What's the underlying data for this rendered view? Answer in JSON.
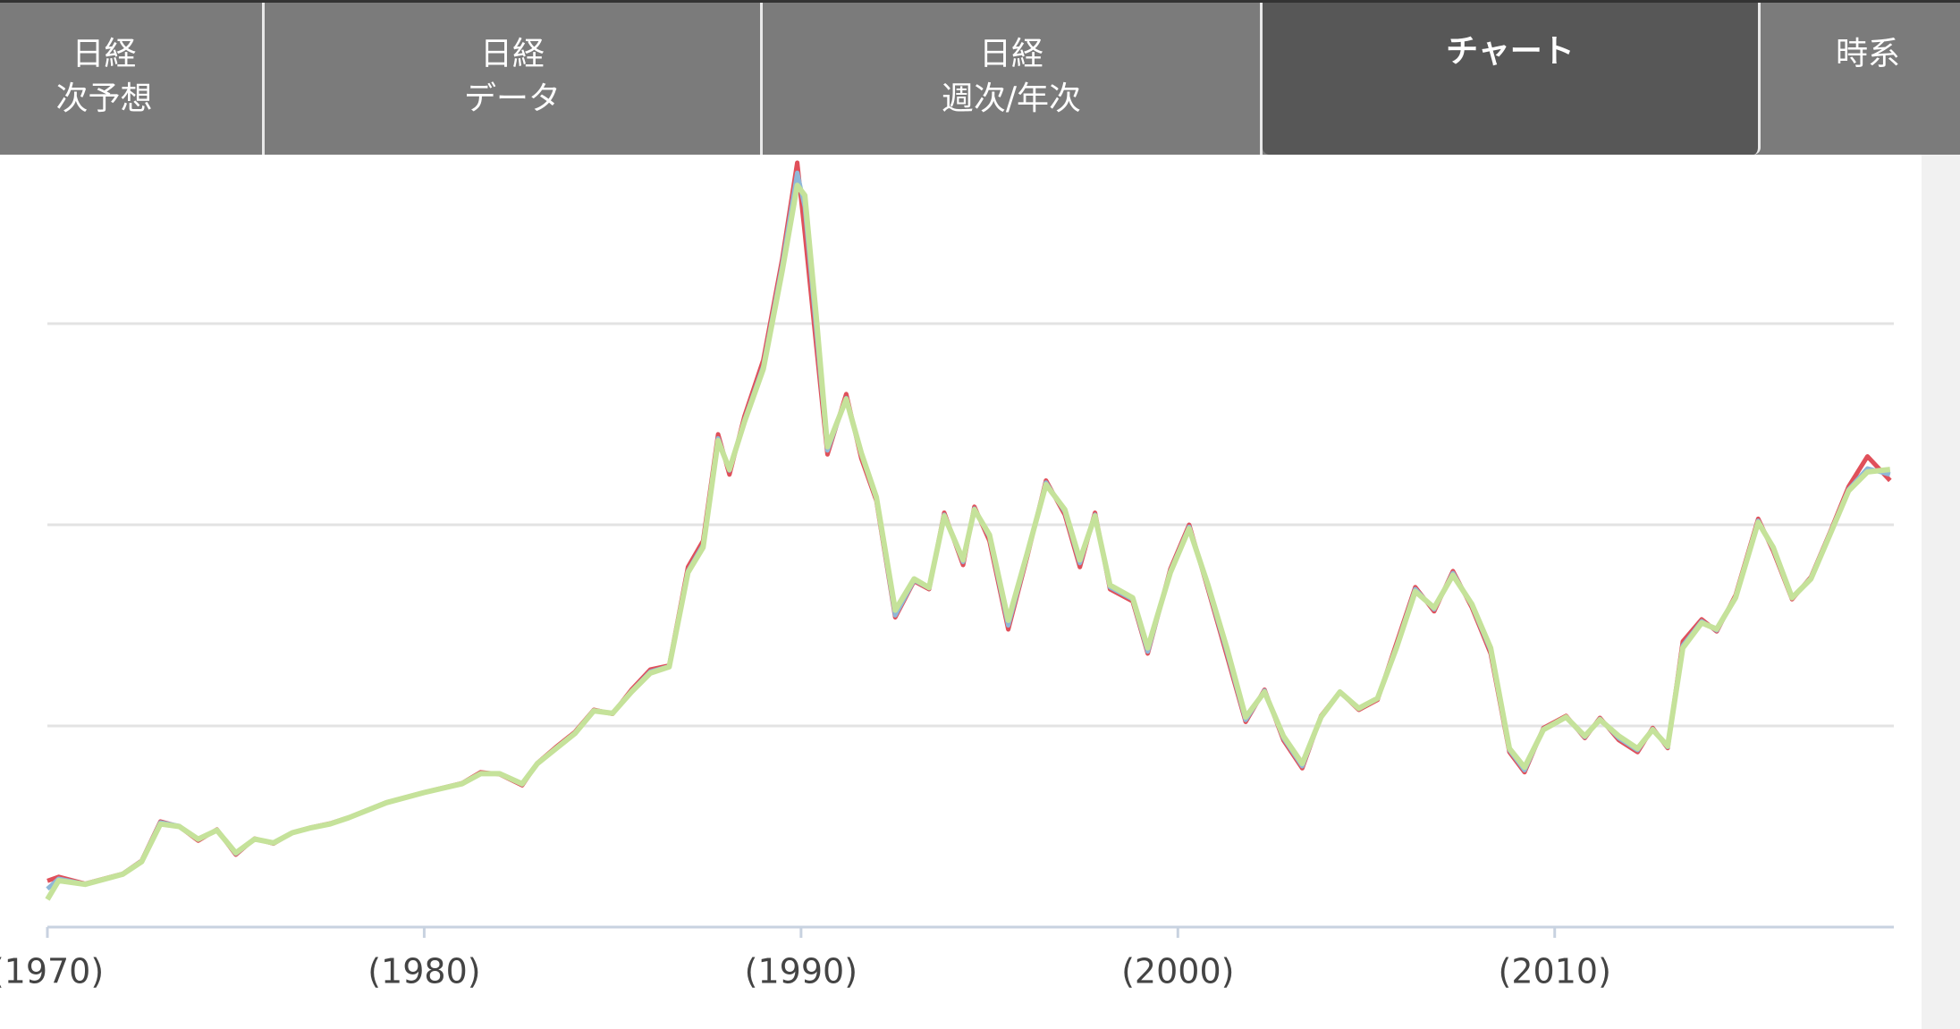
{
  "tabs": [
    {
      "line1": "日経",
      "line2": "次予想"
    },
    {
      "line1": "日経",
      "line2": "データ"
    },
    {
      "line1": "日経",
      "line2": "週次/年次"
    },
    {
      "line1": "チャート",
      "active": true
    },
    {
      "line1": "時系"
    }
  ],
  "chart_data": {
    "type": "line",
    "x": [
      1970.0,
      1970.3,
      1971.0,
      1972.0,
      1972.5,
      1973.0,
      1973.5,
      1974.0,
      1974.5,
      1975.0,
      1975.5,
      1976.0,
      1976.5,
      1977.0,
      1977.5,
      1978.0,
      1979.0,
      1980.0,
      1981.0,
      1981.5,
      1982.0,
      1982.6,
      1983.0,
      1983.5,
      1984.0,
      1984.5,
      1985.0,
      1985.5,
      1986.0,
      1986.5,
      1987.0,
      1987.4,
      1987.8,
      1988.1,
      1988.5,
      1989.0,
      1989.5,
      1989.9,
      1990.1,
      1990.4,
      1990.7,
      1991.2,
      1991.6,
      1992.0,
      1992.5,
      1993.0,
      1993.4,
      1993.8,
      1994.3,
      1994.6,
      1995.0,
      1995.5,
      1996.0,
      1996.5,
      1997.0,
      1997.4,
      1997.8,
      1998.2,
      1998.8,
      1999.2,
      1999.8,
      2000.3,
      2000.8,
      2001.3,
      2001.8,
      2002.3,
      2002.8,
      2003.3,
      2003.8,
      2004.3,
      2004.8,
      2005.3,
      2005.8,
      2006.3,
      2006.8,
      2007.3,
      2007.8,
      2008.3,
      2008.8,
      2009.2,
      2009.7,
      2010.3,
      2010.8,
      2011.2,
      2011.7,
      2012.2,
      2012.6,
      2013.0,
      2013.4,
      2013.9,
      2014.3,
      2014.8,
      2015.4,
      2015.8,
      2016.3,
      2016.8,
      2017.3,
      2017.8,
      2018.3,
      2018.9
    ],
    "series": [
      {
        "color": "#e0505a",
        "values": [
          2300,
          2500,
          2150,
          2650,
          3300,
          5250,
          5000,
          4300,
          4850,
          3600,
          4400,
          4150,
          4700,
          4950,
          5150,
          5450,
          6200,
          6700,
          7150,
          7700,
          7600,
          7050,
          8150,
          8950,
          9700,
          10800,
          10600,
          11800,
          12800,
          13000,
          17900,
          19200,
          24500,
          22500,
          25400,
          28200,
          33200,
          38000,
          34500,
          29000,
          23500,
          26500,
          23300,
          21200,
          15400,
          17200,
          16800,
          20600,
          18000,
          20900,
          19200,
          14800,
          18400,
          22200,
          20500,
          17900,
          20600,
          16800,
          16200,
          13600,
          17800,
          20000,
          16800,
          13500,
          10200,
          11800,
          9300,
          7900,
          10500,
          11700,
          10800,
          11300,
          14100,
          16900,
          15700,
          17700,
          15900,
          13600,
          8700,
          7700,
          9900,
          10500,
          9400,
          10400,
          9300,
          8700,
          9900,
          8900,
          14200,
          15300,
          14700,
          16500,
          20300,
          18700,
          16300,
          17400,
          19600,
          21900,
          23400,
          22200
        ]
      },
      {
        "color": "#8fb8d8",
        "values": [
          1900,
          2400,
          2140,
          2640,
          3280,
          5200,
          5020,
          4350,
          4830,
          3650,
          4380,
          4170,
          4690,
          4940,
          5140,
          5440,
          6190,
          6690,
          7130,
          7650,
          7620,
          7100,
          8140,
          8900,
          9650,
          10770,
          10620,
          11720,
          12700,
          12960,
          17700,
          19000,
          24300,
          22700,
          25200,
          27900,
          32900,
          37500,
          35800,
          29800,
          23700,
          26300,
          23500,
          21300,
          15500,
          17250,
          16850,
          20500,
          18150,
          20800,
          19400,
          15000,
          18500,
          22100,
          20650,
          18100,
          20500,
          16900,
          16300,
          13700,
          17700,
          19900,
          16900,
          13700,
          10300,
          11750,
          9400,
          8000,
          10450,
          11700,
          10850,
          11350,
          13950,
          16800,
          15800,
          17600,
          16000,
          13750,
          8800,
          7800,
          9850,
          10450,
          9450,
          10350,
          9400,
          8800,
          9850,
          8950,
          14000,
          15200,
          14750,
          16400,
          20200,
          18800,
          16350,
          17350,
          19550,
          21750,
          22800,
          22500
        ]
      },
      {
        "color": "#c5e29a",
        "values": [
          1375,
          2313,
          2125,
          2625,
          3250,
          5125,
          5000,
          4375,
          4813,
          3688,
          4375,
          4188,
          4688,
          4938,
          5125,
          5438,
          6188,
          6688,
          7125,
          7625,
          7625,
          7125,
          8125,
          8875,
          9625,
          10750,
          10625,
          11688,
          12625,
          12938,
          17625,
          18875,
          24188,
          22750,
          25125,
          27750,
          32625,
          36875,
          36375,
          30438,
          23875,
          26250,
          23563,
          21375,
          15750,
          17313,
          16875,
          20438,
          18250,
          20750,
          19500,
          15250,
          18563,
          22000,
          20750,
          18250,
          20438,
          17000,
          16375,
          13875,
          17625,
          19813,
          17000,
          13875,
          10438,
          11688,
          9500,
          8125,
          10438,
          11688,
          10875,
          11375,
          13875,
          16688,
          15875,
          17500,
          16063,
          13875,
          8875,
          7938,
          9813,
          10438,
          9500,
          10313,
          9500,
          8875,
          9813,
          9000,
          13875,
          15125,
          14813,
          16375,
          20125,
          18875,
          16375,
          17313,
          19500,
          21688,
          22625,
          22750
        ]
      }
    ],
    "xlim": [
      1970,
      2019
    ],
    "xticks": [
      {
        "value": 1970,
        "label": "(1970)"
      },
      {
        "value": 1980,
        "label": "(1980)"
      },
      {
        "value": 1990,
        "label": "(1990)"
      },
      {
        "value": 2000,
        "label": "(2000)"
      },
      {
        "value": 2010,
        "label": "(2010)"
      }
    ],
    "ylim": [
      0,
      40000
    ],
    "yticks": [
      10000,
      20000,
      30000
    ],
    "ytick_labels": false,
    "grid": true
  }
}
